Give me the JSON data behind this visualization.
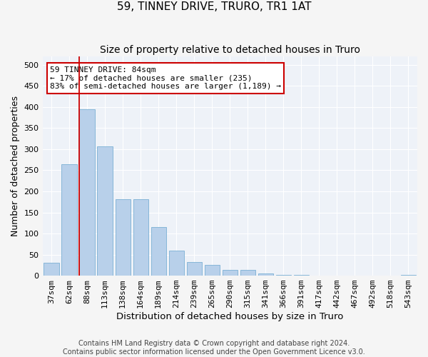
{
  "title": "59, TINNEY DRIVE, TRURO, TR1 1AT",
  "subtitle": "Size of property relative to detached houses in Truro",
  "xlabel": "Distribution of detached houses by size in Truro",
  "ylabel": "Number of detached properties",
  "categories": [
    "37sqm",
    "62sqm",
    "88sqm",
    "113sqm",
    "138sqm",
    "164sqm",
    "189sqm",
    "214sqm",
    "239sqm",
    "265sqm",
    "290sqm",
    "315sqm",
    "341sqm",
    "366sqm",
    "391sqm",
    "417sqm",
    "442sqm",
    "467sqm",
    "492sqm",
    "518sqm",
    "543sqm"
  ],
  "values": [
    30,
    265,
    395,
    307,
    182,
    182,
    115,
    60,
    32,
    26,
    13,
    14,
    6,
    1,
    1,
    0,
    0,
    0,
    0,
    0,
    2
  ],
  "bar_color": "#b8d0ea",
  "bar_edgecolor": "#7aafd4",
  "vline_index": 2,
  "vline_color": "#cc0000",
  "ylim": [
    0,
    520
  ],
  "yticks": [
    0,
    50,
    100,
    150,
    200,
    250,
    300,
    350,
    400,
    450,
    500
  ],
  "annotation_text": "59 TINNEY DRIVE: 84sqm\n← 17% of detached houses are smaller (235)\n83% of semi-detached houses are larger (1,189) →",
  "annotation_box_facecolor": "#ffffff",
  "annotation_box_edgecolor": "#cc0000",
  "footer_line1": "Contains HM Land Registry data © Crown copyright and database right 2024.",
  "footer_line2": "Contains public sector information licensed under the Open Government Licence v3.0.",
  "bg_color": "#eef2f8",
  "grid_color": "#ffffff",
  "title_fontsize": 11,
  "subtitle_fontsize": 10,
  "tick_fontsize": 8,
  "ylabel_fontsize": 9,
  "xlabel_fontsize": 9.5,
  "annotation_fontsize": 8,
  "footer_fontsize": 7
}
